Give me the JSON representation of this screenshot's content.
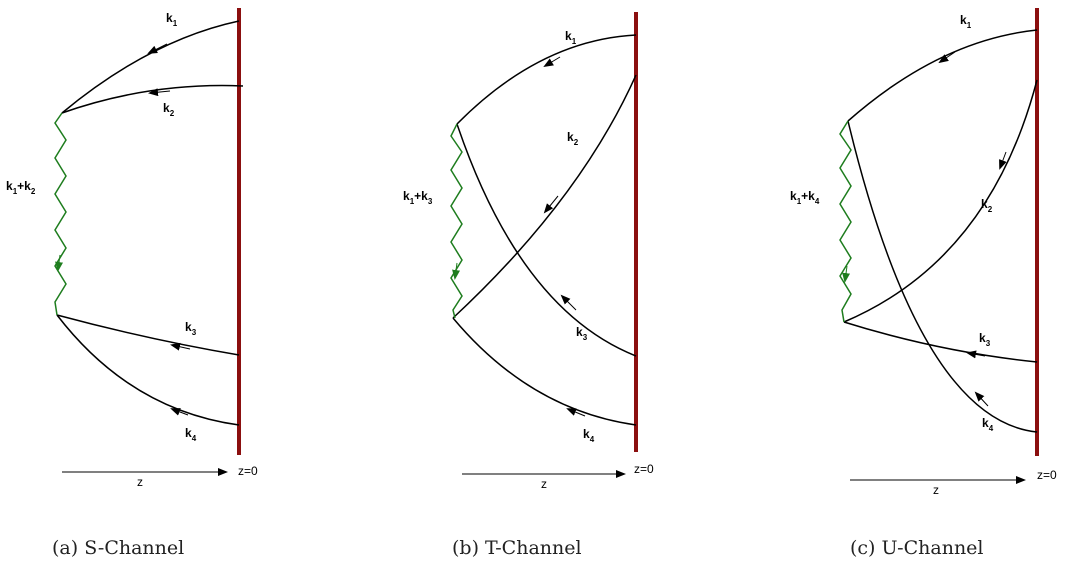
{
  "panels": [
    {
      "caption": "(a) S-Channel",
      "boundary_label": "z=0",
      "axis_label": "z",
      "propagator_label": "k",
      "propagator_subscripts": [
        "1",
        "+k",
        "2"
      ],
      "legs": [
        {
          "label": "k",
          "sub": "1"
        },
        {
          "label": "k",
          "sub": "2"
        },
        {
          "label": "k",
          "sub": "3"
        },
        {
          "label": "k",
          "sub": "4"
        }
      ]
    },
    {
      "caption": "(b) T-Channel",
      "boundary_label": "z=0",
      "axis_label": "z",
      "propagator_label": "k",
      "propagator_subscripts": [
        "1",
        "+k",
        "3"
      ],
      "legs": [
        {
          "label": "k",
          "sub": "1"
        },
        {
          "label": "k",
          "sub": "2"
        },
        {
          "label": "k",
          "sub": "3"
        },
        {
          "label": "k",
          "sub": "4"
        }
      ]
    },
    {
      "caption": "(c) U-Channel",
      "boundary_label": "z=0",
      "axis_label": "z",
      "propagator_label": "k",
      "propagator_subscripts": [
        "1",
        "+k",
        "4"
      ],
      "legs": [
        {
          "label": "k",
          "sub": "1"
        },
        {
          "label": "k",
          "sub": "2"
        },
        {
          "label": "k",
          "sub": "3"
        },
        {
          "label": "k",
          "sub": "4"
        }
      ]
    }
  ],
  "colors": {
    "boundary": "#8b0f0f",
    "propagator": "#1e7d1e",
    "leg": "#000000"
  }
}
